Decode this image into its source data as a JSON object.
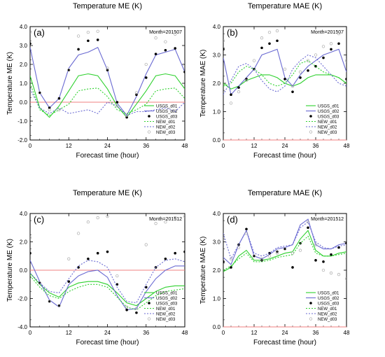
{
  "xlabel": "Forecast time (hour)",
  "x_ticks": [
    0,
    12,
    24,
    36,
    48
  ],
  "legend_position": "bottom-right",
  "zero_line_color": "#f08080",
  "series_styles": [
    {
      "name": "USGS_d01",
      "color": "#2fd12f",
      "style": "solid"
    },
    {
      "name": "USGS_d02",
      "color": "#6a6ad2",
      "style": "solid"
    },
    {
      "name": "USGS_d03",
      "color": "#000000",
      "style": "marker-filled"
    },
    {
      "name": "NEW_d01",
      "color": "#2fd12f",
      "style": "dashed"
    },
    {
      "name": "NEW_d02",
      "color": "#6a6ad2",
      "style": "dashed"
    },
    {
      "name": "NEW_d03",
      "color": "#aaaaaa",
      "style": "marker-open"
    }
  ],
  "chart_data": [
    {
      "type": "line",
      "panel_label": "(a)",
      "title": "Temperature ME (K)",
      "annotation": "Month=201507",
      "ylabel": "Temperature ME (K)",
      "xlabel": "Forecast time (hour)",
      "xlim": [
        0,
        48
      ],
      "ylim": [
        -2,
        4
      ],
      "y_ticks": [
        "-2.0",
        "-1.0",
        "0.0",
        "1.0",
        "2.0",
        "3.0",
        "4.0"
      ],
      "x": [
        0,
        3,
        6,
        9,
        12,
        15,
        18,
        21,
        24,
        27,
        30,
        33,
        36,
        39,
        42,
        45,
        48
      ],
      "series": [
        {
          "name": "USGS_d01",
          "values": [
            1.4,
            -0.3,
            -0.8,
            -0.2,
            0.6,
            1.4,
            1.5,
            1.4,
            0.7,
            -0.2,
            -0.8,
            -0.1,
            0.6,
            1.4,
            1.5,
            1.4,
            0.7
          ]
        },
        {
          "name": "USGS_d02",
          "values": [
            2.9,
            0.5,
            -0.3,
            0.2,
            1.8,
            2.5,
            2.65,
            2.9,
            1.7,
            -0.05,
            -0.7,
            0.3,
            1.5,
            2.5,
            2.65,
            2.8,
            1.6
          ]
        },
        {
          "name": "USGS_d03",
          "values": [
            3.1,
            0.5,
            -0.3,
            0.2,
            1.7,
            2.8,
            3.25,
            3.3,
            1.7,
            0.0,
            -0.8,
            0.4,
            1.3,
            2.55,
            2.75,
            2.85,
            1.6
          ]
        },
        {
          "name": "NEW_d01",
          "values": [
            1.0,
            -0.4,
            -0.7,
            -0.4,
            -0.1,
            0.6,
            0.7,
            0.75,
            0.3,
            -0.4,
            -0.6,
            -0.4,
            -0.1,
            0.6,
            0.7,
            0.75,
            0.2
          ]
        },
        {
          "name": "NEW_d02",
          "values": [
            0.7,
            -0.3,
            -0.6,
            -0.3,
            -0.6,
            -0.5,
            -0.4,
            -0.6,
            0.0,
            -0.2,
            -0.7,
            -0.5,
            -0.5,
            -0.4,
            -0.3,
            -0.5,
            0.0
          ]
        },
        {
          "name": "NEW_d03",
          "values": [
            3.7,
            0.5,
            -0.4,
            -0.4,
            1.7,
            3.5,
            3.7,
            3.75,
            1.8,
            -0.2,
            -0.7,
            0.5,
            2.0,
            3.4,
            3.2,
            3.6,
            2.0
          ]
        }
      ]
    },
    {
      "type": "line",
      "panel_label": "(b)",
      "title": "Temperature MAE (K)",
      "annotation": "Month=201507",
      "ylabel": "Temperature MAE (K)",
      "xlabel": "Forecast time (hour)",
      "xlim": [
        0,
        48
      ],
      "ylim": [
        0,
        4
      ],
      "y_ticks": [
        "0.0",
        "1.0",
        "2.0",
        "3.0",
        "4.0"
      ],
      "x": [
        0,
        3,
        6,
        9,
        12,
        15,
        18,
        21,
        24,
        27,
        30,
        33,
        36,
        39,
        42,
        45,
        48
      ],
      "series": [
        {
          "name": "USGS_d01",
          "values": [
            2.0,
            1.8,
            1.9,
            2.1,
            2.2,
            2.3,
            2.3,
            2.2,
            2.0,
            1.9,
            2.0,
            2.2,
            2.3,
            2.3,
            2.3,
            2.2,
            2.0
          ]
        },
        {
          "name": "USGS_d02",
          "values": [
            2.9,
            1.6,
            1.9,
            2.2,
            2.5,
            3.0,
            3.1,
            3.2,
            2.2,
            1.9,
            2.3,
            2.6,
            2.8,
            3.0,
            3.1,
            3.2,
            2.4
          ]
        },
        {
          "name": "USGS_d03",
          "values": [
            3.2,
            1.6,
            1.85,
            2.15,
            2.5,
            3.25,
            3.4,
            3.5,
            2.15,
            1.7,
            2.2,
            2.45,
            2.6,
            2.9,
            3.2,
            3.4,
            2.15
          ]
        },
        {
          "name": "NEW_d01",
          "values": [
            1.9,
            2.0,
            2.4,
            2.6,
            2.5,
            2.3,
            2.0,
            1.9,
            2.0,
            2.3,
            2.7,
            2.8,
            2.6,
            2.4,
            2.3,
            2.2,
            2.0
          ]
        },
        {
          "name": "NEW_d02",
          "values": [
            1.6,
            2.1,
            2.6,
            2.7,
            2.5,
            2.1,
            1.8,
            1.7,
            1.9,
            2.5,
            2.8,
            3.0,
            2.9,
            2.6,
            2.3,
            2.0,
            1.9
          ]
        },
        {
          "name": "NEW_d03",
          "values": [
            3.5,
            1.3,
            1.7,
            2.1,
            2.8,
            3.6,
            3.8,
            3.85,
            2.5,
            1.9,
            2.4,
            2.8,
            3.0,
            3.3,
            3.4,
            3.75,
            2.8
          ]
        }
      ]
    },
    {
      "type": "line",
      "panel_label": "(c)",
      "title": "Temperature ME (K)",
      "annotation": "Month=201512",
      "ylabel": "Temperature ME (K)",
      "xlabel": "Forecast time (hour)",
      "xlim": [
        0,
        48
      ],
      "ylim": [
        -4,
        4
      ],
      "y_ticks": [
        "-4.0",
        "-2.0",
        "0.0",
        "2.0",
        "4.0"
      ],
      "x": [
        0,
        3,
        6,
        9,
        12,
        15,
        18,
        21,
        24,
        27,
        30,
        33,
        36,
        39,
        42,
        45,
        48
      ],
      "series": [
        {
          "name": "USGS_d01",
          "values": [
            -0.2,
            -1.0,
            -1.6,
            -1.9,
            -1.2,
            -0.9,
            -0.8,
            -0.8,
            -1.0,
            -1.6,
            -2.3,
            -2.5,
            -2.0,
            -1.5,
            -1.2,
            -1.1,
            -1.1
          ]
        },
        {
          "name": "USGS_d02",
          "values": [
            0.7,
            -0.8,
            -2.1,
            -2.6,
            -1.0,
            -0.4,
            -0.1,
            0.0,
            -0.5,
            -1.8,
            -2.8,
            -2.7,
            -1.5,
            -0.6,
            0.0,
            0.3,
            0.3
          ]
        },
        {
          "name": "USGS_d03",
          "values": [
            1.2,
            -0.9,
            -2.2,
            -2.5,
            -0.8,
            0.2,
            0.8,
            1.2,
            1.3,
            -1.0,
            -2.8,
            -3.0,
            -1.2,
            0.2,
            0.8,
            1.2,
            1.3
          ]
        },
        {
          "name": "NEW_d01",
          "values": [
            -0.4,
            -1.2,
            -1.8,
            -2.0,
            -1.5,
            -1.2,
            -1.0,
            -1.0,
            -1.2,
            -1.9,
            -2.6,
            -2.8,
            -2.3,
            -1.8,
            -1.5,
            -1.4,
            -1.3
          ]
        },
        {
          "name": "NEW_d02",
          "values": [
            -0.2,
            -0.9,
            -1.5,
            -1.6,
            -0.6,
            0.3,
            0.7,
            0.6,
            0.2,
            -1.2,
            -2.2,
            -2.3,
            -1.0,
            0.2,
            0.7,
            0.8,
            0.6
          ]
        },
        {
          "name": "NEW_d03",
          "values": [
            2.3,
            -0.9,
            -2.2,
            -2.5,
            0.8,
            2.6,
            3.4,
            3.7,
            3.8,
            -0.4,
            -2.6,
            -2.7,
            1.8,
            3.3,
            3.4,
            3.7,
            3.8
          ]
        }
      ]
    },
    {
      "type": "line",
      "panel_label": "(d)",
      "title": "Temperature MAE (K)",
      "annotation": "Month=201512",
      "ylabel": "Temperature MAE (K)",
      "xlabel": "Forecast time (hour)",
      "xlim": [
        0,
        48
      ],
      "ylim": [
        0,
        4
      ],
      "y_ticks": [
        "0.0",
        "1.0",
        "2.0",
        "3.0",
        "4.0"
      ],
      "x": [
        0,
        3,
        6,
        9,
        12,
        15,
        18,
        21,
        24,
        27,
        30,
        33,
        36,
        39,
        42,
        45,
        48
      ],
      "series": [
        {
          "name": "USGS_d01",
          "values": [
            1.95,
            2.1,
            2.5,
            2.7,
            2.35,
            2.35,
            2.4,
            2.5,
            2.6,
            2.65,
            3.1,
            3.4,
            2.7,
            2.5,
            2.5,
            2.6,
            2.65
          ]
        },
        {
          "name": "USGS_d02",
          "values": [
            2.45,
            2.2,
            2.9,
            3.4,
            2.5,
            2.4,
            2.55,
            2.75,
            2.8,
            2.9,
            3.6,
            3.8,
            2.9,
            2.75,
            2.75,
            2.9,
            2.95
          ]
        },
        {
          "name": "USGS_d03",
          "values": [
            2.3,
            2.1,
            2.9,
            3.45,
            2.5,
            2.35,
            2.6,
            2.65,
            2.75,
            2.1,
            2.95,
            3.5,
            2.35,
            2.3,
            2.55,
            2.8,
            2.95
          ]
        },
        {
          "name": "NEW_d01",
          "values": [
            2.0,
            2.15,
            2.4,
            2.6,
            2.3,
            2.3,
            2.35,
            2.45,
            2.5,
            2.55,
            2.95,
            3.2,
            2.6,
            2.5,
            2.5,
            2.55,
            2.6
          ]
        },
        {
          "name": "NEW_d02",
          "values": [
            3.3,
            2.4,
            2.9,
            3.4,
            2.6,
            2.5,
            2.6,
            2.8,
            2.85,
            2.9,
            3.5,
            3.7,
            3.0,
            2.8,
            2.75,
            2.85,
            2.9
          ]
        },
        {
          "name": "NEW_d03",
          "values": [
            3.1,
            2.4,
            2.8,
            3.3,
            2.5,
            2.4,
            2.5,
            2.6,
            2.75,
            2.6,
            2.7,
            3.7,
            2.9,
            2.0,
            1.9,
            1.85,
            1.7
          ]
        }
      ]
    }
  ]
}
